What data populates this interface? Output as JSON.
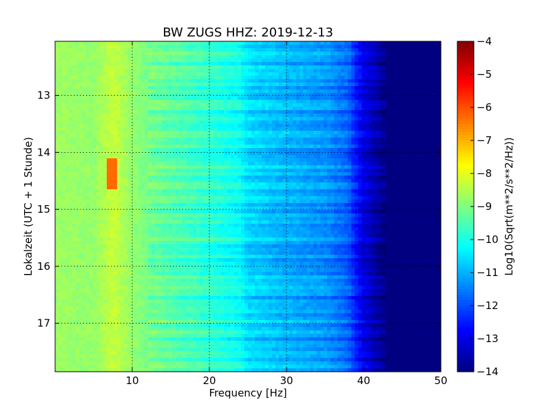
{
  "chart_data": {
    "type": "heatmap",
    "title": "BW ZUGS HHZ: 2019-12-13",
    "xlabel": "Frequency [Hz]",
    "ylabel": "Lokalzeit (UTC + 1 Stunde)",
    "xlim": [
      0,
      50
    ],
    "ylim": [
      12.05,
      17.85
    ],
    "y_direction": "downward",
    "x_ticks": [
      10,
      20,
      30,
      40,
      50
    ],
    "y_ticks": [
      13,
      14,
      15,
      16,
      17
    ],
    "grid": true,
    "grid_style": "dotted",
    "colormap": "jet",
    "colorbar": {
      "label": "Log10(Sqrt(m**2/s**2/Hz))",
      "range": [
        -14,
        -4
      ],
      "ticks": [
        -4,
        -5,
        -6,
        -7,
        -8,
        -9,
        -10,
        -11,
        -12,
        -13,
        -14
      ]
    },
    "frequency_profile": {
      "frequency_hz": [
        0,
        5,
        7.5,
        10,
        12,
        15,
        20,
        24,
        25,
        30,
        35,
        38,
        39,
        40,
        42,
        43,
        50
      ],
      "log_amplitude": [
        -8.7,
        -8.8,
        -8.3,
        -8.8,
        -9.1,
        -9.4,
        -9.8,
        -10.2,
        -10.6,
        -11.0,
        -11.3,
        -11.8,
        -12.5,
        -13.0,
        -13.7,
        -14.0,
        -14.0
      ]
    },
    "annotations": [
      {
        "text": "",
        "feature": "peak near 7.5 Hz",
        "time_range": [
          14.1,
          14.65
        ],
        "value": -6.3
      }
    ]
  }
}
